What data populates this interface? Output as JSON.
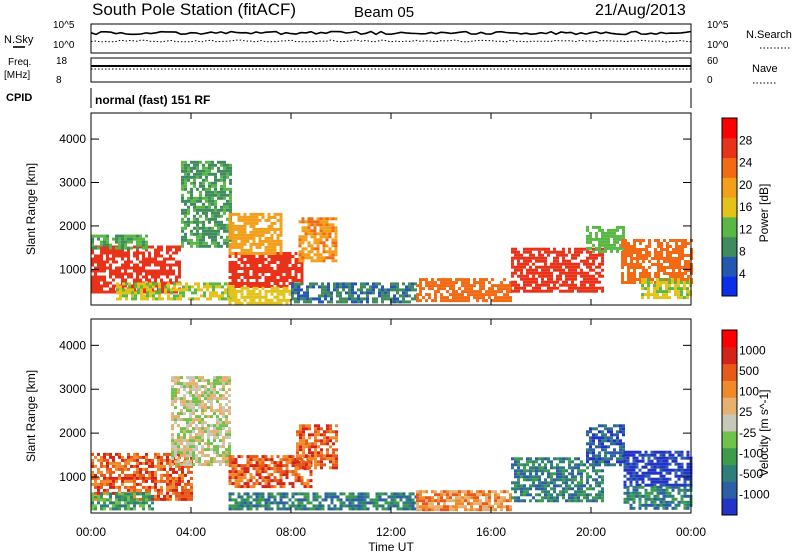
{
  "header": {
    "station": "South Pole Station (fitACF)",
    "beam": "Beam 05",
    "date": "21/Aug/2013"
  },
  "top_panels": {
    "nsky_label": "N.Sky",
    "nsearch_label": "N.Search",
    "noise_ticks": [
      "10^5",
      "10^0"
    ],
    "freq_label_1": "Freq.",
    "freq_label_2": "[MHz]",
    "freq_ticks": [
      "18",
      "8"
    ],
    "nave_label": "Nave",
    "nave_ticks": [
      "60",
      "0"
    ],
    "cpid_label": "CPID",
    "cpid_value": "normal (fast) 151 RF"
  },
  "colors": {
    "power_scale": [
      "#0b2ee8",
      "#2456b4",
      "#3f8a5e",
      "#59b845",
      "#e3c21a",
      "#f2a01c",
      "#f26a14",
      "#e8321a",
      "#ff0000"
    ],
    "velocity_scale": [
      "#2233c8",
      "#2d5fa6",
      "#2f7e7c",
      "#3c9c4c",
      "#71c24a",
      "#c8c8b8",
      "#e8b070",
      "#f08a28",
      "#e85a1a",
      "#d42418",
      "#ff0000"
    ]
  },
  "chart_data": [
    {
      "type": "heatmap",
      "name": "power",
      "xlabel": "",
      "ylabel": "Slant Range [km]",
      "x_ticks": [
        "00:00",
        "04:00",
        "08:00",
        "12:00",
        "16:00",
        "20:00",
        "00:00"
      ],
      "y_ticks": [
        "1000",
        "2000",
        "3000",
        "4000"
      ],
      "xlim_hours": [
        0,
        24
      ],
      "ylim_km": [
        180,
        4600
      ],
      "colorbar_label": "Power [dB]",
      "colorbar_ticks": [
        "4",
        "8",
        "12",
        "16",
        "20",
        "24",
        "28"
      ],
      "colorbar_range": [
        0,
        30
      ],
      "blobs": [
        {
          "t0": 0.0,
          "t1": 3.6,
          "r0": 500,
          "r1": 1550,
          "v": 27
        },
        {
          "t0": 0.0,
          "t1": 2.2,
          "r0": 1500,
          "r1": 1800,
          "v": 10
        },
        {
          "t0": 1.0,
          "t1": 5.8,
          "r0": 350,
          "r1": 700,
          "v": 14
        },
        {
          "t0": 3.6,
          "t1": 5.6,
          "r0": 1500,
          "r1": 3500,
          "v": 9
        },
        {
          "t0": 5.5,
          "t1": 8.5,
          "r0": 600,
          "r1": 1400,
          "v": 26
        },
        {
          "t0": 5.5,
          "t1": 7.6,
          "r0": 1400,
          "r1": 2300,
          "v": 18
        },
        {
          "t0": 5.5,
          "t1": 8.0,
          "r0": 250,
          "r1": 600,
          "v": 15
        },
        {
          "t0": 8.3,
          "t1": 9.8,
          "r0": 1200,
          "r1": 2200,
          "v": 20
        },
        {
          "t0": 8.0,
          "t1": 13.0,
          "r0": 250,
          "r1": 700,
          "v": 6
        },
        {
          "t0": 13.0,
          "t1": 16.8,
          "r0": 250,
          "r1": 800,
          "v": 22
        },
        {
          "t0": 16.8,
          "t1": 20.5,
          "r0": 500,
          "r1": 1500,
          "v": 27
        },
        {
          "t0": 19.8,
          "t1": 21.3,
          "r0": 1400,
          "r1": 2000,
          "v": 12
        },
        {
          "t0": 21.2,
          "t1": 24.0,
          "r0": 700,
          "r1": 1700,
          "v": 22
        },
        {
          "t0": 22.0,
          "t1": 24.0,
          "r0": 350,
          "r1": 800,
          "v": 14
        }
      ]
    },
    {
      "type": "heatmap",
      "name": "velocity",
      "xlabel": "Time UT",
      "ylabel": "Slant Range [km]",
      "x_ticks": [
        "00:00",
        "04:00",
        "08:00",
        "12:00",
        "16:00",
        "20:00",
        "00:00"
      ],
      "y_ticks": [
        "1000",
        "2000",
        "3000",
        "4000"
      ],
      "xlim_hours": [
        0,
        24
      ],
      "ylim_km": [
        180,
        4600
      ],
      "colorbar_label": "Velocity [m s^-1]",
      "colorbar_ticks": [
        "1000",
        "500",
        "100",
        "25",
        "-25",
        "-100",
        "-500",
        "-1000"
      ],
      "blobs": [
        {
          "t0": 0.0,
          "t1": 4.0,
          "r0": 500,
          "r1": 1550,
          "v": 8
        },
        {
          "t0": 0.0,
          "t1": 2.5,
          "r0": 250,
          "r1": 650,
          "v": 3
        },
        {
          "t0": 3.2,
          "t1": 5.6,
          "r0": 1300,
          "r1": 3300,
          "v": 5
        },
        {
          "t0": 5.5,
          "t1": 8.8,
          "r0": 800,
          "r1": 1500,
          "v": 8
        },
        {
          "t0": 5.5,
          "t1": 13.0,
          "r0": 250,
          "r1": 650,
          "v": 2
        },
        {
          "t0": 8.2,
          "t1": 9.8,
          "r0": 1200,
          "r1": 2200,
          "v": 8
        },
        {
          "t0": 13.0,
          "t1": 16.8,
          "r0": 250,
          "r1": 700,
          "v": 7
        },
        {
          "t0": 16.8,
          "t1": 20.5,
          "r0": 450,
          "r1": 1450,
          "v": 2
        },
        {
          "t0": 19.8,
          "t1": 21.3,
          "r0": 1300,
          "r1": 2200,
          "v": 1
        },
        {
          "t0": 21.3,
          "t1": 24.0,
          "r0": 800,
          "r1": 1600,
          "v": 0
        },
        {
          "t0": 21.3,
          "t1": 24.0,
          "r0": 300,
          "r1": 800,
          "v": 2
        }
      ]
    }
  ]
}
